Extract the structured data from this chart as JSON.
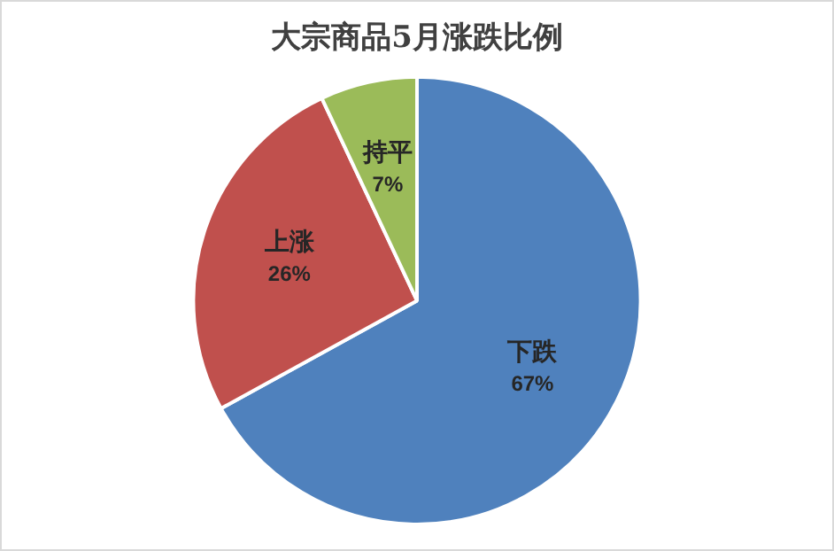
{
  "chart_data": {
    "type": "pie",
    "title": "大宗商品5月涨跌比例",
    "categories": [
      "下跌",
      "上涨",
      "持平"
    ],
    "values": [
      67,
      26,
      7
    ],
    "colors": [
      "#4f81bd",
      "#c0504d",
      "#9bbb59"
    ],
    "value_labels": [
      "67%",
      "26%",
      "7%"
    ],
    "legend": false
  }
}
